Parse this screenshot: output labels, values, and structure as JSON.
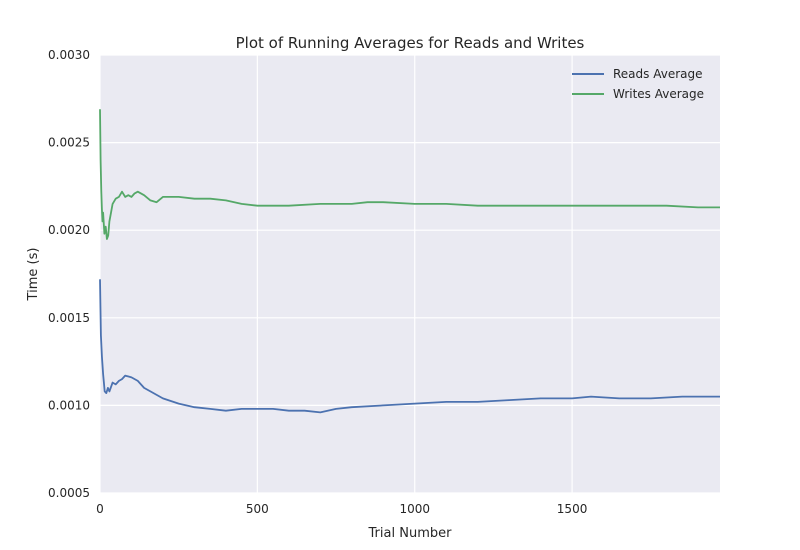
{
  "chart_data": {
    "type": "line",
    "title": "Plot of Running Averages for Reads and Writes",
    "xlabel": "Trial Number",
    "ylabel": "Time (s)",
    "xlim": [
      0,
      1970
    ],
    "ylim": [
      0.0005,
      0.003
    ],
    "xticks": [
      0,
      500,
      1000,
      1500
    ],
    "xtick_labels": [
      "0",
      "500",
      "1000",
      "1500"
    ],
    "yticks": [
      0.0005,
      0.001,
      0.0015,
      0.002,
      0.0025,
      0.003
    ],
    "ytick_labels": [
      "0.0005",
      "0.0010",
      "0.0015",
      "0.0020",
      "0.0025",
      "0.0030"
    ],
    "grid": true,
    "legend_position": "top-right",
    "series": [
      {
        "name": "Reads Average",
        "color": "#4c72b0",
        "x": [
          0,
          3,
          6,
          10,
          15,
          20,
          25,
          30,
          40,
          50,
          60,
          70,
          80,
          100,
          120,
          140,
          160,
          200,
          250,
          300,
          350,
          400,
          450,
          500,
          550,
          600,
          650,
          700,
          750,
          800,
          900,
          1000,
          1100,
          1200,
          1300,
          1400,
          1500,
          1560,
          1650,
          1750,
          1850,
          1970
        ],
        "y": [
          0.00172,
          0.0014,
          0.00128,
          0.00118,
          0.00108,
          0.00107,
          0.0011,
          0.00108,
          0.00113,
          0.00112,
          0.00114,
          0.00115,
          0.00117,
          0.00116,
          0.00114,
          0.0011,
          0.00108,
          0.00104,
          0.00101,
          0.00099,
          0.00098,
          0.00097,
          0.00098,
          0.00098,
          0.00098,
          0.00097,
          0.00097,
          0.00096,
          0.00098,
          0.00099,
          0.001,
          0.00101,
          0.00102,
          0.00102,
          0.00103,
          0.00104,
          0.00104,
          0.00105,
          0.00104,
          0.00104,
          0.00105,
          0.00105
        ]
      },
      {
        "name": "Writes Average",
        "color": "#55a868",
        "x": [
          0,
          2,
          4,
          6,
          8,
          10,
          14,
          18,
          22,
          26,
          30,
          35,
          40,
          50,
          60,
          70,
          80,
          90,
          100,
          110,
          120,
          140,
          160,
          180,
          200,
          220,
          250,
          300,
          350,
          400,
          450,
          500,
          550,
          600,
          700,
          800,
          850,
          900,
          1000,
          1100,
          1200,
          1300,
          1400,
          1500,
          1600,
          1700,
          1800,
          1900,
          1970
        ],
        "y": [
          0.00269,
          0.0024,
          0.00222,
          0.00212,
          0.00205,
          0.0021,
          0.00198,
          0.00202,
          0.00195,
          0.00197,
          0.00205,
          0.0021,
          0.00215,
          0.00218,
          0.00219,
          0.00222,
          0.00219,
          0.0022,
          0.00219,
          0.00221,
          0.00222,
          0.0022,
          0.00217,
          0.00216,
          0.00219,
          0.00219,
          0.00219,
          0.00218,
          0.00218,
          0.00217,
          0.00215,
          0.00214,
          0.00214,
          0.00214,
          0.00215,
          0.00215,
          0.00216,
          0.00216,
          0.00215,
          0.00215,
          0.00214,
          0.00214,
          0.00214,
          0.00214,
          0.00214,
          0.00214,
          0.00214,
          0.00213,
          0.00213
        ]
      }
    ]
  }
}
